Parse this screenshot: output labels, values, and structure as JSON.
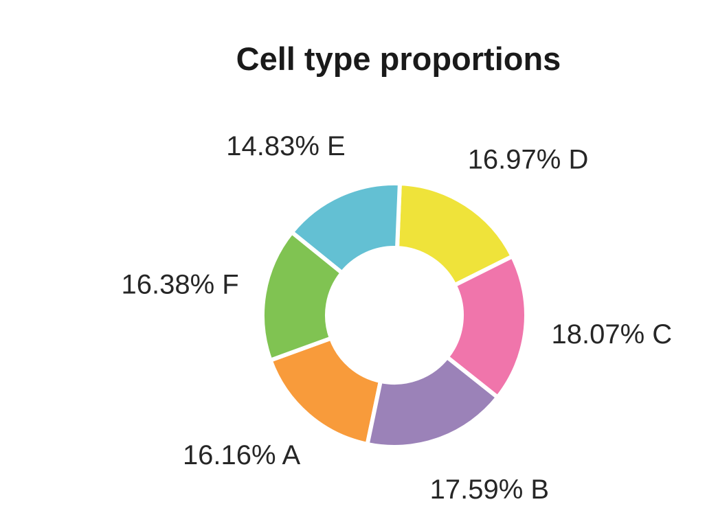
{
  "chart_data": {
    "type": "pie",
    "title": "Cell type proportions",
    "donut": true,
    "slices": [
      {
        "label": "16.16% A",
        "category": "A",
        "value": 16.16,
        "color": "#f89b3b"
      },
      {
        "label": "17.59% B",
        "category": "B",
        "value": 17.59,
        "color": "#9b82b8"
      },
      {
        "label": "18.07% C",
        "category": "C",
        "value": 18.07,
        "color": "#f075ab"
      },
      {
        "label": "16.97% D",
        "category": "D",
        "value": 16.97,
        "color": "#efe33a"
      },
      {
        "label": "14.83% E",
        "category": "E",
        "value": 14.83,
        "color": "#63c0d3"
      },
      {
        "label": "16.38% F",
        "category": "F",
        "value": 16.38,
        "color": "#80c352"
      }
    ],
    "legend": "none",
    "grid": false
  }
}
